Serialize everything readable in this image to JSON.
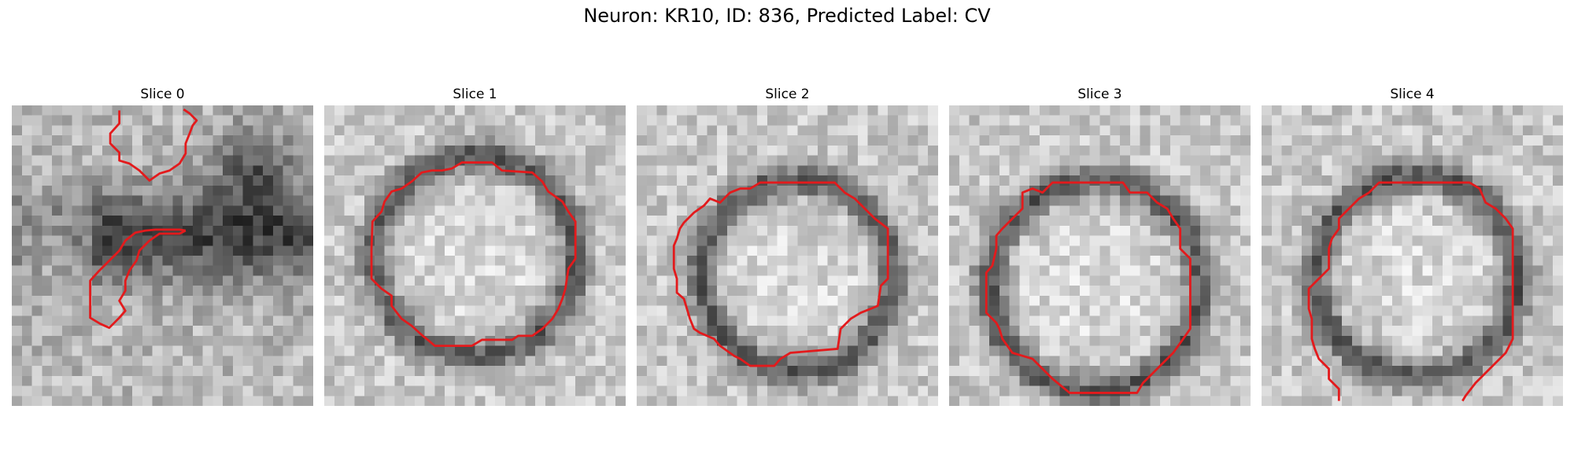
{
  "figure": {
    "title": "Neuron: KR10, ID: 836, Predicted Label: CV"
  },
  "panels": [
    {
      "label": "Slice 0"
    },
    {
      "label": "Slice 1"
    },
    {
      "label": "Slice 2"
    },
    {
      "label": "Slice 3"
    },
    {
      "label": "Slice 4"
    }
  ],
  "colors": {
    "contour": "#e31a1c",
    "background": "#ffffff"
  }
}
